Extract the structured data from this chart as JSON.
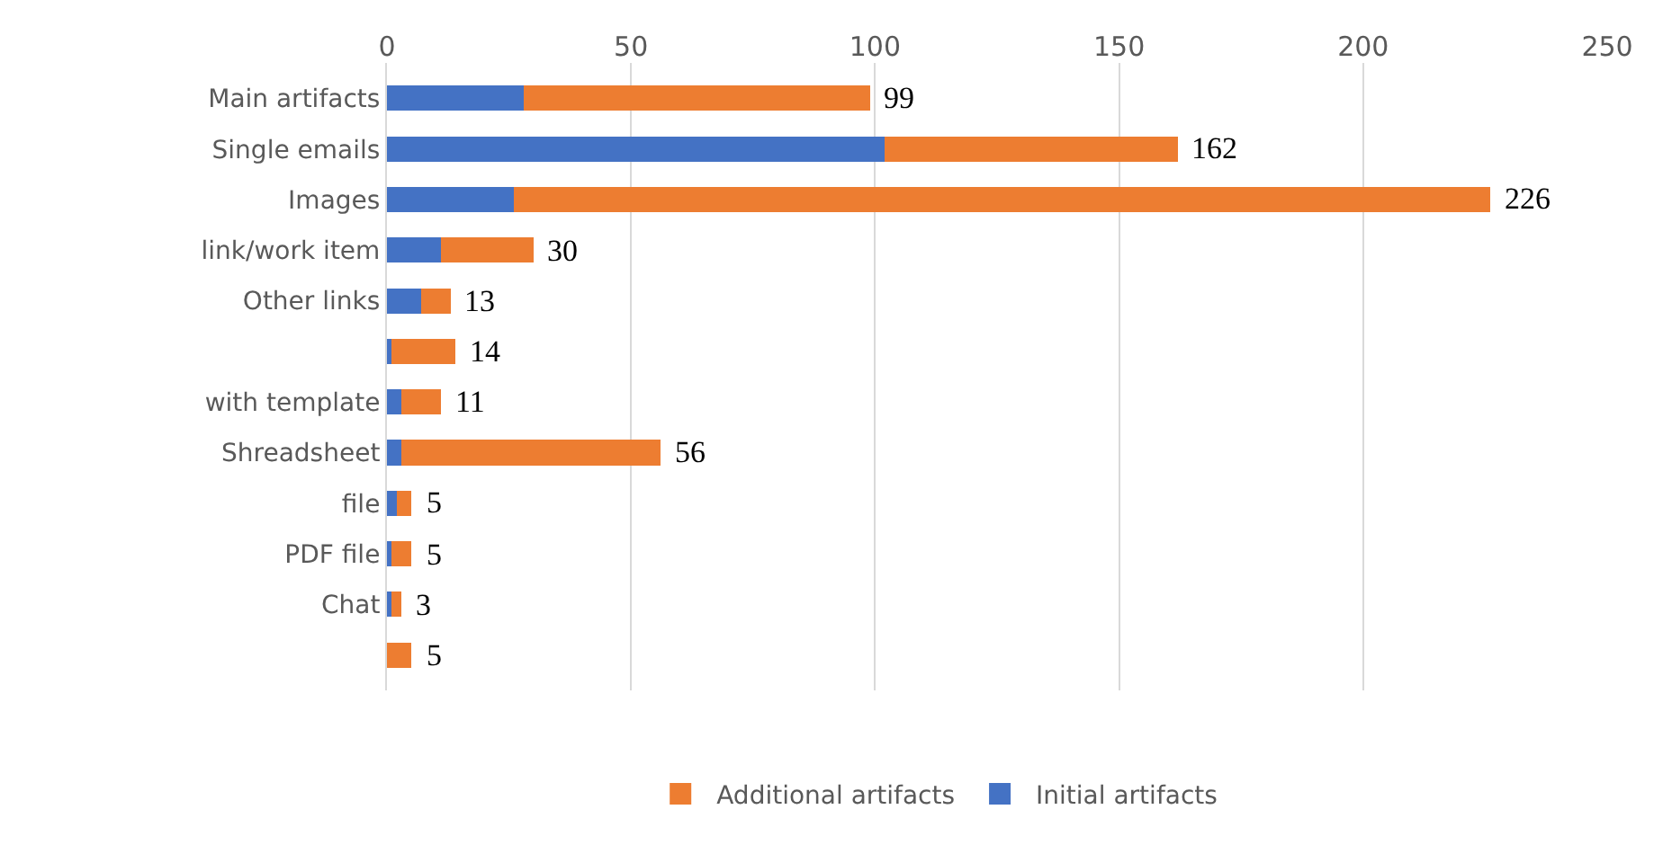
{
  "chart_data": {
    "type": "bar",
    "orientation": "horizontal",
    "stacked": true,
    "categories": [
      "Main artifacts",
      "Single emails",
      "Images",
      "link/work item",
      "Other links",
      null,
      "with template",
      "Shreadsheet",
      "file",
      "PDF file",
      "Chat",
      null
    ],
    "series": [
      {
        "name": "Initial artifacts",
        "color": "#4472c4",
        "values": [
          28,
          102,
          26,
          11,
          7,
          1,
          3,
          3,
          2,
          1,
          1,
          0
        ]
      },
      {
        "name": "Additional artifacts",
        "color": "#ed7d31",
        "values": [
          71,
          60,
          200,
          19,
          6,
          13,
          8,
          53,
          3,
          4,
          2,
          5
        ]
      }
    ],
    "totals": [
      "99",
      "162",
      "226",
      "30",
      "13",
      "14",
      "11",
      "56",
      "5",
      "5",
      "3",
      "5"
    ],
    "xlim": [
      0,
      250
    ],
    "xticks": [
      0,
      50,
      100,
      150,
      200,
      250
    ],
    "grid": "x",
    "legend": "bottom"
  }
}
